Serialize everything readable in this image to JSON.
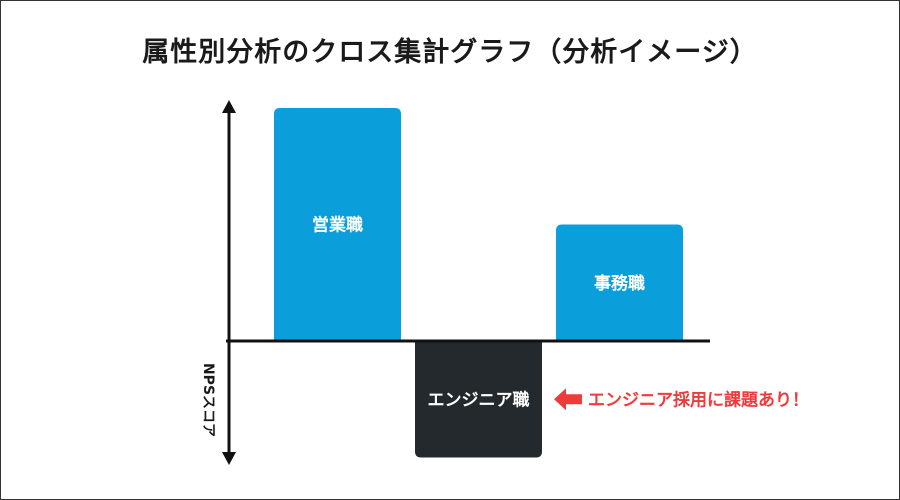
{
  "chart_data": {
    "type": "bar",
    "title": "属性別分析のクロス集計グラフ（分析イメージ）",
    "ylabel": "NPSスコア",
    "categories": [
      "営業職",
      "エンジニア職",
      "事務職"
    ],
    "values": [
      100,
      -50,
      50
    ],
    "ylim": [
      -55,
      105
    ],
    "grid": false,
    "colors": [
      "#0a9fdb",
      "#23292c",
      "#0a9fdb"
    ],
    "annotation": {
      "text": "エンジニア採用に課題あり！",
      "target": "エンジニア職",
      "color": "#f03a3a"
    }
  }
}
